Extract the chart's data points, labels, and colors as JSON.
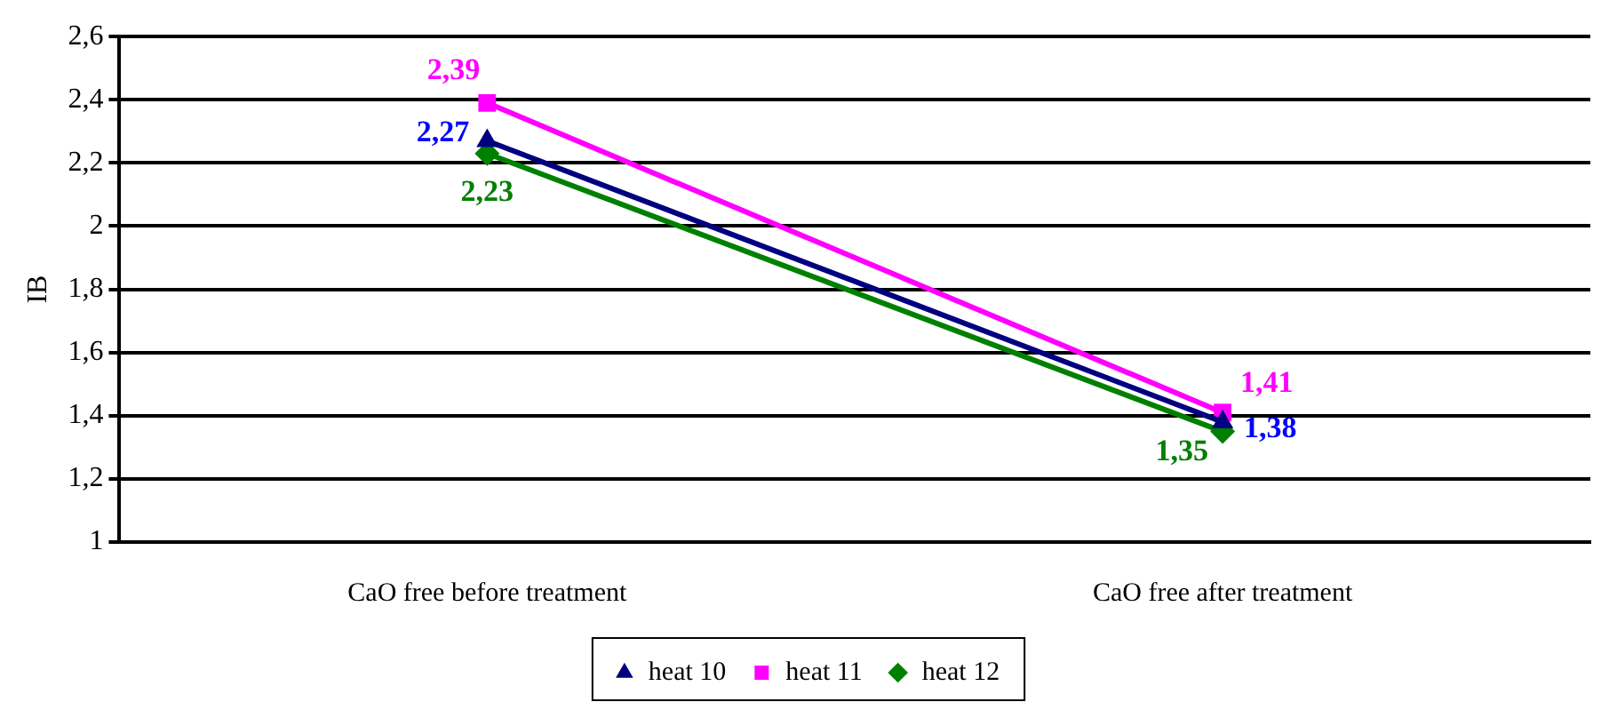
{
  "chart_data": {
    "type": "line",
    "ylabel": "IB",
    "categories": [
      "CaO free before treatment",
      "CaO free after treatment"
    ],
    "series": [
      {
        "name": "heat 10",
        "color": "#000080",
        "marker": "triangle",
        "values": [
          2.27,
          1.38
        ],
        "value_labels": [
          "2,27",
          "1,38"
        ]
      },
      {
        "name": "heat 11",
        "color": "#ff00ff",
        "marker": "square",
        "values": [
          2.39,
          1.41
        ],
        "value_labels": [
          "2,39",
          "1,41"
        ]
      },
      {
        "name": "heat 12",
        "color": "#008000",
        "marker": "diamond",
        "values": [
          2.23,
          1.35
        ],
        "value_labels": [
          "2,23",
          "1,35"
        ]
      }
    ],
    "ylim": [
      1,
      2.6
    ],
    "yticks": [
      1,
      {
        "value": 1.2,
        "label": "1,2"
      },
      {
        "value": 1.4,
        "label": "1,4"
      },
      {
        "value": 1.6,
        "label": "1,6"
      },
      {
        "value": 1.8,
        "label": "1,8"
      },
      2,
      {
        "value": 2.2,
        "label": "2,2"
      },
      {
        "value": 2.4,
        "label": "2,4"
      },
      {
        "value": 2.6,
        "label": "2,6"
      }
    ],
    "grid": "y",
    "legend": "bottom",
    "line_style": "solid"
  }
}
